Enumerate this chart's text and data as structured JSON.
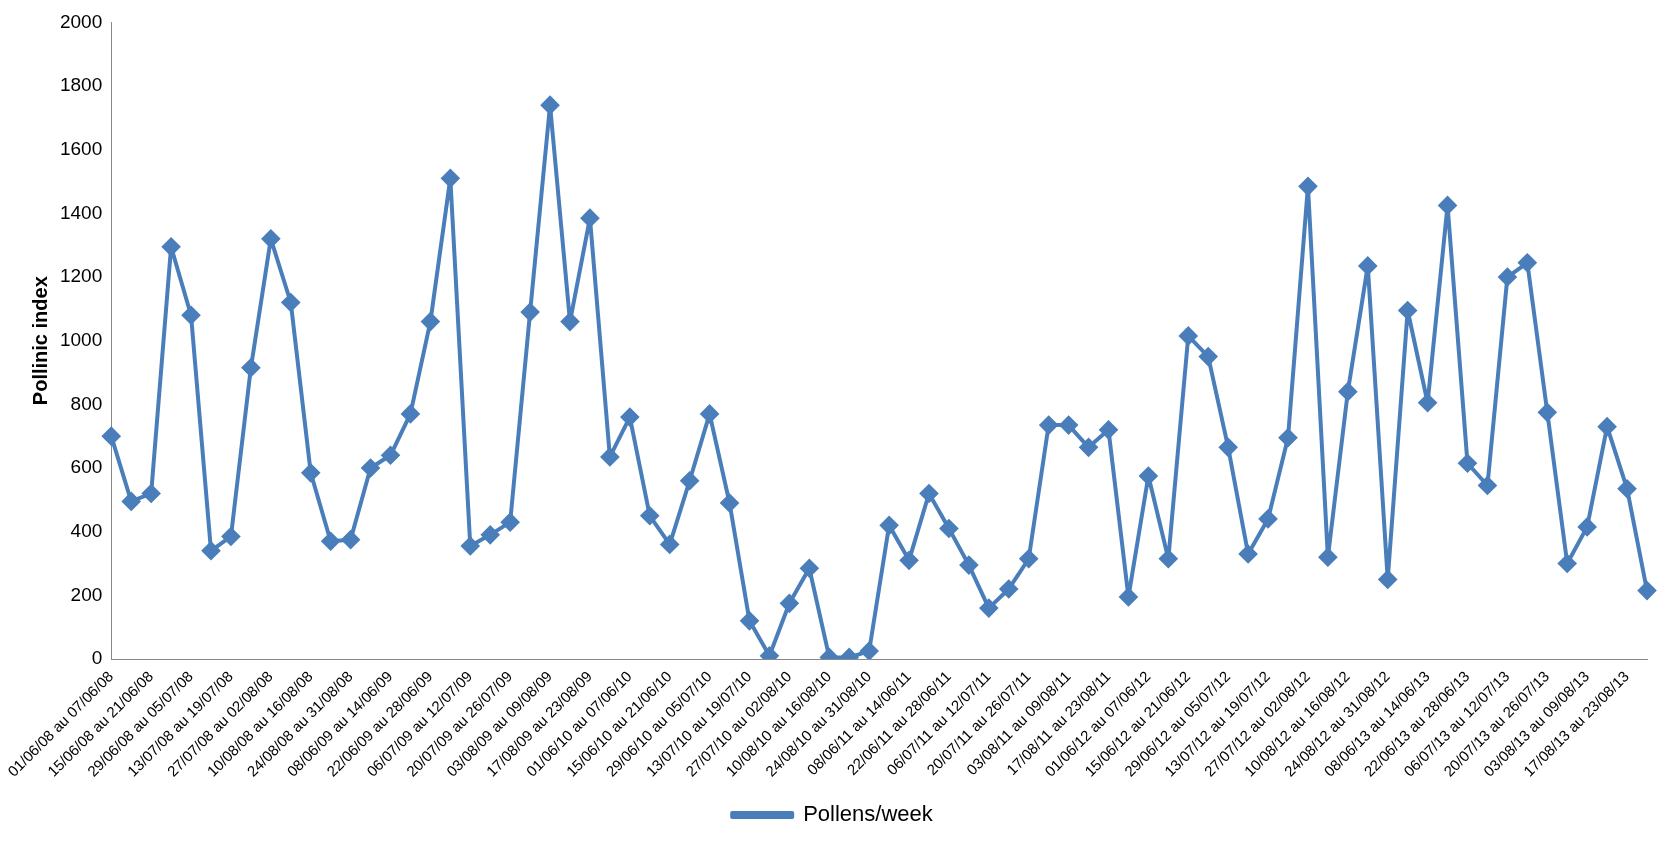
{
  "chart_data": {
    "type": "line",
    "ylabel": "Pollinic index",
    "categories": [
      "01/06/08 au 07/06/08",
      null,
      "15/06/08 au 21/06/08",
      null,
      "29/06/08 au 05/07/08",
      null,
      "13/07/08 au 19/07/08",
      null,
      "27/07/08 au 02/08/08",
      null,
      "10/08/08 au 16/08/08",
      null,
      "24/08/08 au 31/08/08",
      null,
      "08/06/09 au 14/06/09",
      null,
      "22/06/09 au 28/06/09",
      null,
      "06/07/09 au 12/07/09",
      null,
      "20/07/09 au 26/07/09",
      null,
      "03/08/09 au 09/08/09",
      null,
      "17/08/09 au 23/08/09",
      null,
      "01/06/10 au 07/06/10",
      null,
      "15/06/10 au 21/06/10",
      null,
      "29/06/10 au 05/07/10",
      null,
      "13/07/10 au 19/07/10",
      null,
      "27/07/10 au 02/08/10",
      null,
      "10/08/10 au 16/08/10",
      null,
      "24/08/10 au 31/08/10",
      null,
      "08/06/11 au 14/06/11",
      null,
      "22/06/11 au 28/06/11",
      null,
      "06/07/11 au 12/07/11",
      null,
      "20/07/11 au 26/07/11",
      null,
      "03/08/11 au 09/08/11",
      null,
      "17/08/11 au 23/08/11",
      null,
      "01/06/12 au 07/06/12",
      null,
      "15/06/12 au 21/06/12",
      null,
      "29/06/12 au 05/07/12",
      null,
      "13/07/12 au 19/07/12",
      null,
      "27/07/12 au 02/08/12",
      null,
      "10/08/12 au 16/08/12",
      null,
      "24/08/12 au 31/08/12",
      null,
      "08/06/13 au 14/06/13",
      null,
      "22/06/13 au 28/06/13",
      null,
      "06/07/13 au 12/07/13",
      null,
      "20/07/13 au 26/07/13",
      null,
      "03/08/13 au 09/08/13",
      null,
      "17/08/13 au 23/08/13",
      null
    ],
    "series": [
      {
        "name": "Pollens/week",
        "color": "#4a7ebb",
        "values": [
          700,
          495,
          520,
          1295,
          1080,
          340,
          385,
          915,
          1320,
          1120,
          585,
          370,
          375,
          600,
          640,
          770,
          1060,
          1510,
          355,
          390,
          430,
          1090,
          1740,
          1060,
          1385,
          635,
          760,
          450,
          360,
          560,
          770,
          490,
          120,
          10,
          175,
          285,
          5,
          5,
          25,
          420,
          310,
          520,
          410,
          295,
          160,
          220,
          315,
          735,
          735,
          665,
          720,
          195,
          575,
          315,
          1015,
          950,
          665,
          330,
          440,
          695,
          1485,
          320,
          840,
          1235,
          250,
          1095,
          805,
          1425,
          615,
          545,
          1200,
          1245,
          775,
          300,
          415,
          730,
          535,
          215
        ]
      }
    ],
    "ylim": [
      0,
      2000
    ],
    "yticks": [
      0,
      200,
      400,
      600,
      800,
      1000,
      1200,
      1400,
      1600,
      1800,
      2000
    ],
    "grid": false,
    "legend": "bottom",
    "marker": "diamond",
    "line_style": "solid"
  }
}
